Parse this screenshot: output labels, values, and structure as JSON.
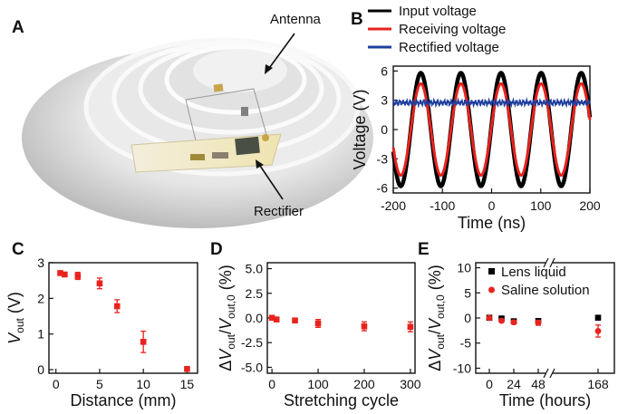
{
  "panels": {
    "A": {
      "label": "A",
      "callouts": [
        "Antenna",
        "Rectifier"
      ]
    },
    "B": {
      "label": "B"
    },
    "C": {
      "label": "C"
    },
    "D": {
      "label": "D"
    },
    "E": {
      "label": "E"
    }
  },
  "colors": {
    "input": "#000000",
    "receiving": "#e8231e",
    "rectified": "#1f3f9e",
    "marker_red": "#e8231e",
    "marker_black": "#000000"
  },
  "chart_data": [
    {
      "id": "B",
      "type": "line",
      "xlabel": "Time (ns)",
      "ylabel": "Voltage (V)",
      "xlim": [
        -200,
        200
      ],
      "ylim": [
        -6.5,
        6.5
      ],
      "xticks": [
        -200,
        -100,
        0,
        100,
        200
      ],
      "yticks": [
        -6,
        -3,
        0,
        3,
        6
      ],
      "period_ns": 81.6,
      "phase_peak_ns": -144,
      "series": [
        {
          "name": "Input  voltage",
          "amplitude": 5.8,
          "offset": 0,
          "color": "#000000"
        },
        {
          "name": "Receiving voltage",
          "amplitude": 4.7,
          "offset": 0,
          "color": "#e8231e"
        },
        {
          "name": "Rectified voltage",
          "amplitude": 0,
          "offset": 2.75,
          "color": "#1f3f9e"
        }
      ],
      "legend": "top"
    },
    {
      "id": "C",
      "type": "scatter",
      "xlabel": "Distance (mm)",
      "ylabel": "V_out (V)",
      "xlim": [
        -0.8,
        16.2
      ],
      "ylim": [
        -0.1,
        3.0
      ],
      "xticks": [
        0,
        5,
        10,
        15
      ],
      "yticks": [
        0,
        1,
        2,
        3
      ],
      "series": [
        {
          "name": "",
          "x": [
            0.5,
            1,
            2.5,
            5,
            7,
            10,
            15
          ],
          "y": [
            2.71,
            2.67,
            2.63,
            2.42,
            1.78,
            0.78,
            0.02
          ],
          "err": [
            0.05,
            0.05,
            0.1,
            0.15,
            0.18,
            0.3,
            0.03
          ]
        }
      ]
    },
    {
      "id": "D",
      "type": "scatter",
      "xlabel": "Stretching cycle",
      "ylabel": "ΔV_out/V_out,0 (%)",
      "xlim": [
        -10,
        310
      ],
      "ylim": [
        -5.6,
        5.6
      ],
      "xticks": [
        0,
        100,
        200,
        300
      ],
      "yticks": [
        "5.0",
        "2.5",
        "0.0",
        "-2.5",
        "-5.0"
      ],
      "series": [
        {
          "name": "",
          "x": [
            0,
            10,
            50,
            100,
            200,
            300
          ],
          "y": [
            0.02,
            -0.15,
            -0.25,
            -0.55,
            -0.85,
            -0.9
          ],
          "err": [
            0.15,
            0.2,
            0.2,
            0.4,
            0.45,
            0.5
          ]
        }
      ]
    },
    {
      "id": "E",
      "type": "scatter",
      "xlabel": "Time (hours)",
      "ylabel": "ΔV_out/V_out,0 (%)",
      "xticks": [
        "0",
        "24",
        "48",
        "168"
      ],
      "yticks": [
        "10",
        "5",
        "0",
        "-5",
        "-10"
      ],
      "ylim": [
        -11,
        11
      ],
      "axis_break": "between 48 and 168",
      "legend": "top-right",
      "series": [
        {
          "name": "Lens liquid",
          "x": [
            0,
            12,
            24,
            48,
            168
          ],
          "y": [
            0.05,
            -0.1,
            -0.65,
            -0.6,
            0.05
          ],
          "err": [
            0.2,
            0.3,
            0.3,
            0.4,
            0.3
          ],
          "color": "#000000"
        },
        {
          "name": "Saline solution",
          "x": [
            0,
            12,
            24,
            48,
            168
          ],
          "y": [
            0.0,
            -0.55,
            -0.85,
            -0.95,
            -2.6
          ],
          "err": [
            0.25,
            0.3,
            0.35,
            0.5,
            1.2
          ],
          "color": "#e8231e"
        }
      ]
    }
  ]
}
